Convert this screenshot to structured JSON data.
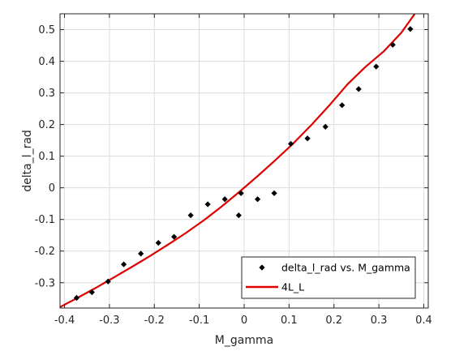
{
  "chart_data": {
    "type": "scatter",
    "xlabel": "M_gamma",
    "ylabel": "delta_l_rad",
    "xlim": [
      -0.41,
      0.41
    ],
    "ylim": [
      -0.38,
      0.55
    ],
    "xticks": [
      -0.4,
      -0.3,
      -0.2,
      -0.1,
      0,
      0.1,
      0.2,
      0.3,
      0.4
    ],
    "yticks": [
      -0.3,
      -0.2,
      -0.1,
      0,
      0.1,
      0.2,
      0.3,
      0.4,
      0.5
    ],
    "xtick_labels": [
      "-0.4",
      "-0.3",
      "-0.2",
      "-0.1",
      "0",
      "0.1",
      "0.2",
      "0.3",
      "0.4"
    ],
    "ytick_labels": [
      "-0.3",
      "-0.2",
      "-0.1",
      "0",
      "0.1",
      "0.2",
      "0.3",
      "0.4",
      "0.5"
    ],
    "grid": true,
    "legend_position": "bottom-right",
    "series": [
      {
        "name": "delta_l_rad vs. M_gamma",
        "kind": "markers",
        "color": "#000000",
        "x": [
          -0.373,
          -0.339,
          -0.303,
          -0.268,
          -0.23,
          -0.191,
          -0.156,
          -0.119,
          -0.081,
          -0.043,
          -0.012,
          -0.007,
          0.03,
          0.067,
          0.104,
          0.141,
          0.181,
          0.218,
          0.255,
          0.294,
          0.331,
          0.37
        ],
        "y": [
          -0.348,
          -0.33,
          -0.296,
          -0.242,
          -0.208,
          -0.174,
          -0.155,
          -0.087,
          -0.052,
          -0.036,
          -0.087,
          -0.017,
          -0.036,
          -0.017,
          0.139,
          0.156,
          0.193,
          0.261,
          0.312,
          0.383,
          0.452,
          0.502
        ]
      },
      {
        "name": "4L_L",
        "kind": "line",
        "color": "#e00000",
        "x": [
          -0.41,
          -0.37,
          -0.33,
          -0.29,
          -0.25,
          -0.21,
          -0.17,
          -0.13,
          -0.09,
          -0.05,
          -0.01,
          0.03,
          0.07,
          0.11,
          0.15,
          0.19,
          0.23,
          0.27,
          0.31,
          0.35,
          0.38
        ],
        "y": [
          -0.377,
          -0.347,
          -0.316,
          -0.283,
          -0.25,
          -0.216,
          -0.18,
          -0.143,
          -0.103,
          -0.059,
          -0.012,
          0.037,
          0.088,
          0.141,
          0.199,
          0.261,
          0.327,
          0.382,
          0.43,
          0.49,
          0.55
        ]
      }
    ]
  }
}
